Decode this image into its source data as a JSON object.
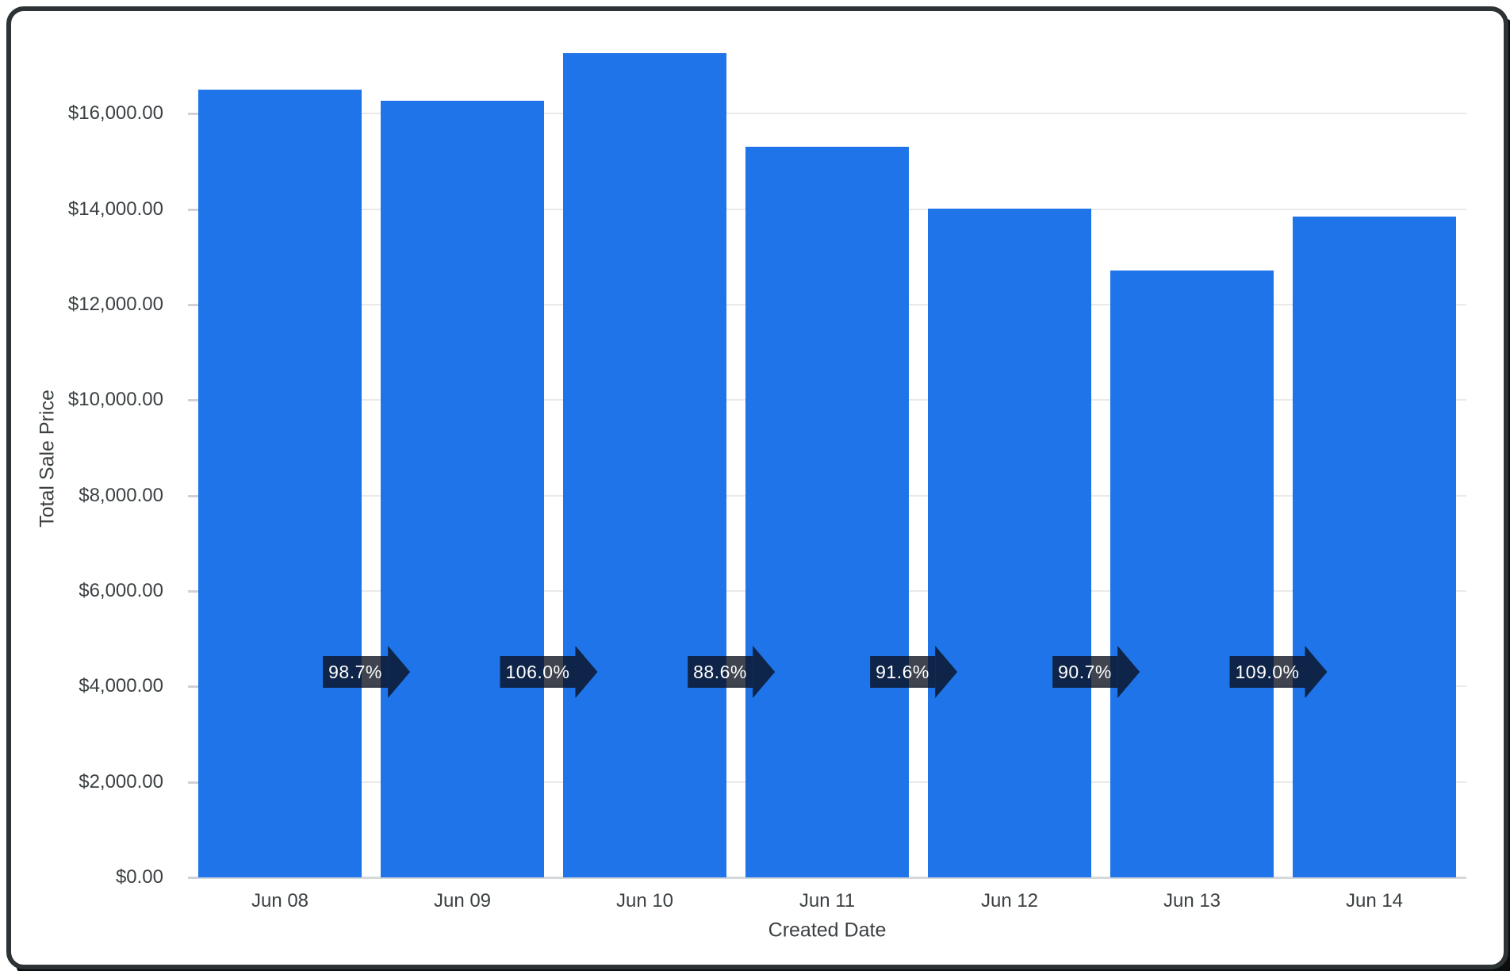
{
  "colors": {
    "bar": "#1e74e8",
    "arrow_chip": "rgba(10,16,28,0.78)",
    "arrow_text": "#ffffff",
    "gridline": "#e9e9e9",
    "baseline": "#d5d8db",
    "axis_text": "#3b4043",
    "card_background": "#ffffff",
    "frame_border": "#2d3235",
    "frame_shadow": "#0b0d0e"
  },
  "chart_data": {
    "type": "bar",
    "title": "",
    "xlabel": "Created Date",
    "ylabel": "Total Sale Price",
    "series_name": "Total Sale Price",
    "categories": [
      "Jun 08",
      "Jun 09",
      "Jun 10",
      "Jun 11",
      "Jun 12",
      "Jun 13",
      "Jun 14"
    ],
    "values": [
      16500,
      16270,
      17265,
      15300,
      14005,
      12710,
      13850
    ],
    "percent_changes": [
      {
        "from": "Jun 08",
        "to": "Jun 09",
        "label": "98.7%"
      },
      {
        "from": "Jun 09",
        "to": "Jun 10",
        "label": "106.0%"
      },
      {
        "from": "Jun 10",
        "to": "Jun 11",
        "label": "88.6%"
      },
      {
        "from": "Jun 11",
        "to": "Jun 12",
        "label": "91.6%"
      },
      {
        "from": "Jun 12",
        "to": "Jun 13",
        "label": "90.7%"
      },
      {
        "from": "Jun 13",
        "to": "Jun 14",
        "label": "109.0%"
      }
    ],
    "y_ticks": [
      {
        "value": 16000,
        "label": "$16,000.00"
      },
      {
        "value": 14000,
        "label": "$14,000.00"
      },
      {
        "value": 12000,
        "label": "$12,000.00"
      },
      {
        "value": 10000,
        "label": "$10,000.00"
      },
      {
        "value": 8000,
        "label": "$8,000.00"
      },
      {
        "value": 6000,
        "label": "$6,000.00"
      },
      {
        "value": 4000,
        "label": "$4,000.00"
      },
      {
        "value": 2000,
        "label": "$2,000.00"
      },
      {
        "value": 0,
        "label": "$0.00"
      }
    ],
    "ylim": [
      0,
      17800
    ],
    "grid": true,
    "legend": "none"
  }
}
